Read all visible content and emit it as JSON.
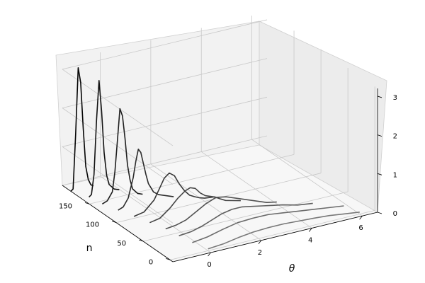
{
  "chart_data": {
    "type": "line",
    "projection": "3d",
    "title": "",
    "xlabel": "θ",
    "ylabel": "n",
    "zlabel": "",
    "xlim": [
      -1.5,
      6.6
    ],
    "ylim": [
      -5,
      200
    ],
    "zlim": [
      0,
      3.2
    ],
    "x_ticks": [
      "0",
      "2",
      "4",
      "6"
    ],
    "y_ticks": [
      "0",
      "50",
      "100",
      "150"
    ],
    "z_ticks": [
      "0",
      "1",
      "2",
      "3"
    ],
    "grid": true,
    "legend": "none",
    "series": [
      {
        "n": 180,
        "x": [
          -1.6,
          -1.5,
          -1.4,
          -1.3,
          -1.2,
          -1.1,
          -1.0,
          -0.9,
          -0.8,
          -0.7
        ],
        "y": [
          0.05,
          0.1,
          1.5,
          3.2,
          2.8,
          1.6,
          0.6,
          0.25,
          0.1,
          0.05
        ]
      },
      {
        "n": 160,
        "x": [
          -1.3,
          -1.2,
          -1.1,
          -1.0,
          -0.9,
          -0.8,
          -0.7,
          -0.6,
          -0.5,
          -0.3,
          -0.1
        ],
        "y": [
          0.05,
          0.1,
          0.6,
          2.0,
          3.0,
          2.2,
          1.1,
          0.5,
          0.25,
          0.1,
          0.05
        ]
      },
      {
        "n": 140,
        "x": [
          -1.2,
          -1.0,
          -0.8,
          -0.7,
          -0.6,
          -0.5,
          -0.4,
          -0.3,
          -0.2,
          -0.1,
          0.0,
          0.2,
          0.4
        ],
        "y": [
          0.05,
          0.1,
          0.3,
          0.8,
          1.6,
          2.4,
          2.2,
          1.6,
          0.9,
          0.5,
          0.25,
          0.1,
          0.05
        ]
      },
      {
        "n": 120,
        "x": [
          -1.0,
          -0.8,
          -0.6,
          -0.4,
          -0.3,
          -0.2,
          -0.1,
          0.0,
          0.1,
          0.2,
          0.4,
          0.6,
          0.8,
          1.0,
          1.2
        ],
        "y": [
          0.05,
          0.1,
          0.3,
          0.8,
          1.2,
          1.5,
          1.4,
          1.1,
          0.8,
          0.55,
          0.3,
          0.2,
          0.15,
          0.1,
          0.05
        ]
      },
      {
        "n": 100,
        "x": [
          -0.8,
          -0.4,
          0.0,
          0.2,
          0.4,
          0.6,
          0.8,
          1.0,
          1.2,
          1.4,
          1.6,
          1.8,
          2.0,
          2.4
        ],
        "y": [
          0.05,
          0.1,
          0.35,
          0.6,
          0.85,
          0.95,
          0.85,
          0.6,
          0.4,
          0.25,
          0.18,
          0.12,
          0.08,
          0.05
        ]
      },
      {
        "n": 80,
        "x": [
          -0.6,
          -0.2,
          0.2,
          0.5,
          0.8,
          1.0,
          1.2,
          1.4,
          1.6,
          1.8,
          2.0,
          2.2,
          2.4,
          2.7,
          3.0
        ],
        "y": [
          0.05,
          0.1,
          0.3,
          0.5,
          0.65,
          0.7,
          0.65,
          0.5,
          0.4,
          0.35,
          0.3,
          0.22,
          0.15,
          0.1,
          0.05
        ]
      },
      {
        "n": 60,
        "x": [
          -0.4,
          0.0,
          0.4,
          0.8,
          1.2,
          1.6,
          2.0,
          2.4,
          2.8,
          3.2,
          3.6,
          4.0
        ],
        "y": [
          0.05,
          0.08,
          0.15,
          0.3,
          0.45,
          0.55,
          0.5,
          0.4,
          0.3,
          0.2,
          0.1,
          0.05
        ]
      },
      {
        "n": 40,
        "x": [
          -0.3,
          0.2,
          0.6,
          1.0,
          1.4,
          1.8,
          2.2,
          2.6,
          3.0,
          3.4,
          3.8,
          4.4,
          5.0
        ],
        "y": [
          0.05,
          0.08,
          0.15,
          0.25,
          0.35,
          0.4,
          0.4,
          0.35,
          0.3,
          0.25,
          0.2,
          0.1,
          0.05
        ]
      },
      {
        "n": 20,
        "x": [
          -0.2,
          0.4,
          1.0,
          1.6,
          2.2,
          2.8,
          3.4,
          4.0,
          4.6,
          5.2,
          5.8
        ],
        "y": [
          0.05,
          0.1,
          0.2,
          0.28,
          0.3,
          0.3,
          0.25,
          0.2,
          0.15,
          0.1,
          0.05
        ]
      },
      {
        "n": 0,
        "x": [
          0.0,
          0.6,
          1.2,
          1.8,
          2.4,
          3.0,
          3.6,
          4.2,
          4.8,
          5.4,
          6.0
        ],
        "y": [
          0.05,
          0.08,
          0.15,
          0.2,
          0.22,
          0.22,
          0.2,
          0.18,
          0.15,
          0.1,
          0.05
        ]
      }
    ]
  }
}
